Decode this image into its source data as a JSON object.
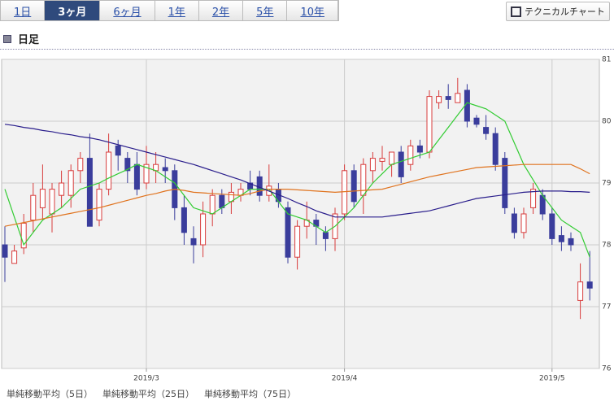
{
  "tabs": [
    "1日",
    "3ヶ月",
    "6ヶ月",
    "1年",
    "2年",
    "5年",
    "10年"
  ],
  "selected_tab": 1,
  "button": "テクニカルチャート",
  "section_title": "日足",
  "chart_data": {
    "type": "candlestick",
    "categories": [
      null,
      null,
      null,
      null,
      null,
      null,
      null,
      null,
      null,
      null,
      null,
      null,
      null,
      null,
      null,
      "2019/3",
      null,
      null,
      null,
      null,
      null,
      null,
      null,
      null,
      null,
      null,
      null,
      null,
      null,
      null,
      null,
      null,
      null,
      null,
      null,
      null,
      "2019/4",
      null,
      null,
      null,
      null,
      null,
      null,
      null,
      null,
      null,
      null,
      null,
      null,
      null,
      null,
      null,
      null,
      null,
      null,
      null,
      null,
      null,
      "2019/5",
      null,
      null,
      null,
      null
    ],
    "open": [
      78.0,
      77.7,
      77.95,
      78.4,
      78.6,
      78.5,
      78.8,
      78.8,
      79.2,
      79.4,
      78.4,
      78.9,
      79.6,
      79.4,
      79.3,
      79.0,
      79.2,
      79.25,
      79.2,
      78.6,
      78.1,
      78.0,
      78.5,
      78.8,
      78.7,
      78.8,
      79.0,
      79.1,
      78.8,
      78.9,
      78.6,
      77.8,
      78.3,
      78.4,
      78.2,
      78.1,
      78.5,
      79.2,
      78.8,
      79.2,
      79.35,
      79.3,
      79.5,
      79.3,
      79.6,
      79.5,
      80.3,
      80.4,
      80.3,
      80.5,
      80.05,
      79.9,
      79.8,
      79.4,
      78.5,
      78.2,
      78.6,
      78.8,
      78.5,
      78.15,
      78.1,
      77.1,
      77.4
    ],
    "high": [
      78.3,
      78.0,
      78.5,
      79.0,
      79.3,
      79.0,
      79.2,
      79.3,
      79.5,
      79.8,
      79.0,
      79.8,
      79.7,
      79.5,
      79.5,
      79.6,
      79.5,
      79.4,
      79.3,
      78.8,
      78.3,
      78.7,
      78.9,
      78.9,
      79.0,
      79.0,
      79.2,
      79.2,
      79.3,
      79.0,
      78.7,
      78.4,
      78.7,
      78.5,
      78.3,
      78.6,
      79.3,
      79.3,
      79.4,
      79.5,
      79.6,
      79.5,
      79.6,
      79.7,
      79.7,
      80.5,
      80.5,
      80.6,
      80.7,
      80.6,
      80.1,
      80.1,
      79.9,
      79.5,
      78.6,
      78.6,
      79.0,
      78.9,
      78.6,
      78.3,
      78.2,
      77.7,
      77.9
    ],
    "low": [
      77.4,
      77.7,
      77.85,
      78.2,
      78.4,
      78.2,
      78.6,
      78.6,
      79.0,
      78.3,
      78.3,
      78.8,
      79.2,
      79.0,
      78.8,
      78.9,
      79.0,
      79.0,
      78.4,
      78.0,
      77.7,
      77.8,
      78.3,
      78.5,
      78.5,
      78.7,
      78.8,
      78.7,
      78.7,
      78.6,
      77.7,
      77.6,
      78.1,
      78.0,
      77.9,
      77.9,
      78.4,
      78.6,
      78.5,
      79.0,
      79.2,
      79.1,
      79.0,
      79.2,
      79.4,
      79.4,
      80.2,
      80.2,
      80.3,
      79.9,
      79.9,
      79.7,
      79.2,
      78.5,
      78.1,
      78.1,
      78.5,
      78.4,
      78.0,
      77.9,
      77.9,
      76.8,
      77.1
    ],
    "close": [
      77.8,
      77.9,
      78.35,
      78.8,
      78.9,
      78.9,
      79.0,
      79.2,
      79.4,
      78.3,
      78.9,
      79.5,
      79.45,
      79.2,
      78.9,
      79.3,
      79.3,
      79.2,
      78.6,
      78.2,
      78.0,
      78.5,
      78.8,
      78.6,
      78.85,
      78.9,
      78.9,
      78.8,
      78.95,
      78.7,
      77.8,
      78.3,
      78.4,
      78.3,
      78.1,
      78.5,
      79.2,
      78.7,
      79.3,
      79.4,
      79.4,
      79.5,
      79.1,
      79.6,
      79.5,
      80.4,
      80.4,
      80.35,
      80.45,
      80.0,
      79.95,
      79.8,
      79.3,
      78.6,
      78.2,
      78.5,
      78.9,
      78.5,
      78.1,
      78.05,
      78.0,
      77.4,
      77.3
    ],
    "up_color": "#d83c3c",
    "down_color": "#3a3d9c",
    "series": [
      {
        "name": "単純移動平均（5日）",
        "color": "#33cc33",
        "values": [
          78.9,
          78.45,
          78.0,
          78.2,
          78.4,
          78.5,
          78.6,
          78.75,
          78.9,
          78.95,
          79.0,
          79.08,
          79.15,
          79.22,
          79.3,
          79.25,
          79.2,
          79.1,
          79.0,
          78.8,
          78.6,
          78.55,
          78.5,
          78.6,
          78.7,
          78.8,
          78.9,
          78.9,
          78.9,
          78.7,
          78.5,
          78.45,
          78.4,
          78.3,
          78.2,
          78.3,
          78.45,
          78.6,
          78.8,
          79.0,
          79.15,
          79.3,
          79.35,
          79.4,
          79.45,
          79.5,
          79.7,
          79.9,
          80.1,
          80.3,
          80.25,
          80.2,
          80.1,
          80.0,
          79.65,
          79.3,
          79.05,
          78.8,
          78.6,
          78.4,
          78.3,
          78.2,
          77.8
        ]
      },
      {
        "name": "単純移動平均（25日）",
        "color": "#e0731e",
        "values": [
          78.3,
          78.33,
          78.36,
          78.39,
          78.42,
          78.45,
          78.48,
          78.51,
          78.54,
          78.57,
          78.6,
          78.64,
          78.68,
          78.72,
          78.76,
          78.8,
          78.83,
          78.87,
          78.9,
          78.88,
          78.85,
          78.84,
          78.83,
          78.82,
          78.81,
          78.8,
          78.83,
          78.87,
          78.9,
          78.9,
          78.9,
          78.89,
          78.88,
          78.87,
          78.86,
          78.85,
          78.86,
          78.87,
          78.88,
          78.89,
          78.9,
          78.94,
          78.98,
          79.02,
          79.06,
          79.1,
          79.13,
          79.16,
          79.19,
          79.22,
          79.25,
          79.26,
          79.27,
          79.28,
          79.29,
          79.3,
          79.3,
          79.3,
          79.3,
          79.3,
          79.3,
          79.23,
          79.15
        ]
      },
      {
        "name": "単純移動平均（75日）",
        "color": "#2a1e8c",
        "values": [
          79.95,
          79.93,
          79.9,
          79.88,
          79.85,
          79.83,
          79.8,
          79.78,
          79.75,
          79.73,
          79.7,
          79.66,
          79.62,
          79.58,
          79.54,
          79.5,
          79.46,
          79.42,
          79.38,
          79.34,
          79.3,
          79.25,
          79.2,
          79.15,
          79.1,
          79.05,
          78.99,
          78.93,
          78.87,
          78.81,
          78.75,
          78.68,
          78.62,
          78.55,
          78.5,
          78.45,
          78.45,
          78.45,
          78.45,
          78.45,
          78.45,
          78.47,
          78.49,
          78.51,
          78.53,
          78.55,
          78.59,
          78.63,
          78.67,
          78.71,
          78.75,
          78.77,
          78.79,
          78.81,
          78.83,
          78.85,
          78.86,
          78.87,
          78.87,
          78.87,
          78.86,
          78.86,
          78.85
        ]
      }
    ],
    "ylim": [
      76,
      81
    ],
    "yticks": [
      76,
      77,
      78,
      79,
      80,
      81
    ],
    "grid": true
  }
}
